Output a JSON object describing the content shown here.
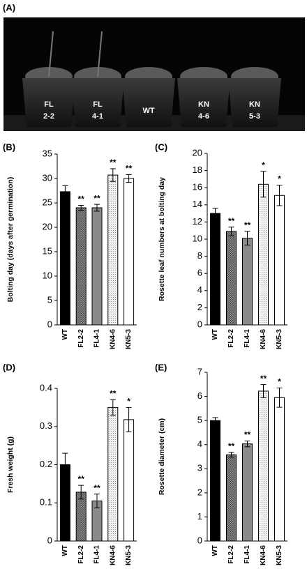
{
  "photo": {
    "label": "(A)",
    "pots": [
      [
        "FL",
        "2-2"
      ],
      [
        "FL",
        "4-1"
      ],
      [
        "WT"
      ],
      [
        "KN",
        "4-6"
      ],
      [
        "KN",
        "5-3"
      ]
    ]
  },
  "chart_data": [
    {
      "type": "bar",
      "panel": "(B)",
      "ylabel": "Bolting day (days after germination)",
      "categories": [
        "WT",
        "FL2-2",
        "FL4-1",
        "KN4-6",
        "KN5-3"
      ],
      "values": [
        27.3,
        24.0,
        24.0,
        30.7,
        30.0
      ],
      "errors": [
        1.2,
        0.5,
        0.7,
        1.3,
        0.8
      ],
      "annotations": [
        null,
        "**",
        "**",
        "**",
        "**"
      ],
      "fills": [
        "#000000",
        "checker",
        "#8a8a8a",
        "dots",
        "#ffffff"
      ],
      "ylim": [
        0,
        35
      ],
      "yticks": [
        0,
        5,
        10,
        15,
        20,
        25,
        30,
        35
      ]
    },
    {
      "type": "bar",
      "panel": "(C)",
      "ylabel": "Rosette leaf numbers at bolting day",
      "categories": [
        "WT",
        "FL2-2",
        "FL4-1",
        "KN4-6",
        "KN5-3"
      ],
      "values": [
        13.0,
        10.9,
        10.1,
        16.4,
        15.1
      ],
      "errors": [
        0.6,
        0.5,
        0.8,
        1.5,
        1.2
      ],
      "annotations": [
        null,
        "**",
        "**",
        "*",
        "*"
      ],
      "fills": [
        "#000000",
        "checker",
        "#8a8a8a",
        "dots",
        "#ffffff"
      ],
      "ylim": [
        0,
        20
      ],
      "yticks": [
        0,
        2,
        4,
        6,
        8,
        10,
        12,
        14,
        16,
        18,
        20
      ]
    },
    {
      "type": "bar",
      "panel": "(D)",
      "ylabel": "Fresh weight (g)",
      "categories": [
        "WT",
        "FL2-2",
        "FL4-1",
        "KN4-6",
        "KN5-3"
      ],
      "values": [
        0.2,
        0.128,
        0.105,
        0.35,
        0.318
      ],
      "errors": [
        0.03,
        0.018,
        0.018,
        0.02,
        0.032
      ],
      "annotations": [
        null,
        "**",
        "**",
        "**",
        "*"
      ],
      "fills": [
        "#000000",
        "checker",
        "#8a8a8a",
        "dots",
        "#ffffff"
      ],
      "ylim": [
        0,
        0.4
      ],
      "yticks": [
        0,
        0.1,
        0.2,
        0.3,
        0.4
      ]
    },
    {
      "type": "bar",
      "panel": "(E)",
      "ylabel": "Rosette diameter (cm)",
      "categories": [
        "WT",
        "FL2-2",
        "FL4-1",
        "KN4-6",
        "KN5-3"
      ],
      "values": [
        5.0,
        3.58,
        4.03,
        6.22,
        5.95
      ],
      "errors": [
        0.12,
        0.1,
        0.12,
        0.27,
        0.4
      ],
      "annotations": [
        null,
        "**",
        "**",
        "**",
        "*"
      ],
      "fills": [
        "#000000",
        "checker",
        "#8a8a8a",
        "dots",
        "#ffffff"
      ],
      "ylim": [
        0,
        7
      ],
      "yticks": [
        0,
        1,
        2,
        3,
        4,
        5,
        6,
        7
      ]
    }
  ]
}
